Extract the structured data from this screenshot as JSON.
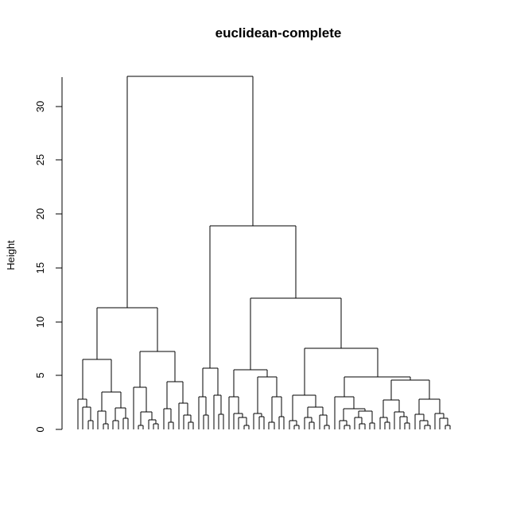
{
  "chart_data": {
    "type": "dendrogram",
    "title": "euclidean-complete",
    "ylabel": "Height",
    "xlabel": "",
    "ylim": [
      0,
      33
    ],
    "yticks": [
      0,
      5,
      10,
      15,
      20,
      25,
      30
    ],
    "ytick_labels": [
      "0",
      "5",
      "10",
      "15",
      "20",
      "25",
      "30"
    ],
    "leaf_count": 81,
    "merge_heights": [
      32.8,
      11.3,
      18.9,
      6.5,
      7.2,
      12.2,
      2.8,
      3.5,
      3.9,
      4.4,
      5.7,
      5.5,
      7.5,
      4.9,
      3.1,
      4.6,
      2.7,
      2.8,
      2.1,
      2.0,
      1.7,
      1.6,
      1.9,
      3.0,
      2.1,
      2.9,
      2.6,
      1.5,
      1.2
    ]
  }
}
